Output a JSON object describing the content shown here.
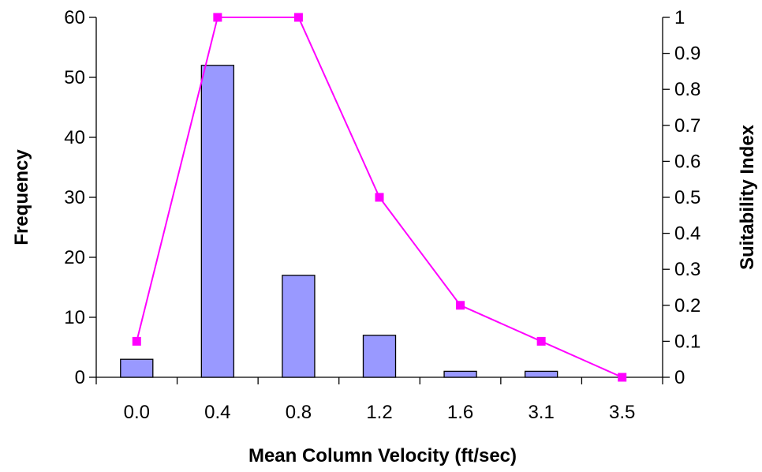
{
  "chart_data": {
    "type": "bar",
    "categories": [
      "0.0",
      "0.4",
      "0.8",
      "1.2",
      "1.6",
      "3.1",
      "3.5"
    ],
    "xlabel": "Mean Column Velocity (ft/sec)",
    "ylabel": "Frequency",
    "y2label": "Suitability Index",
    "ylim": [
      0,
      60
    ],
    "y2lim": [
      0,
      1
    ],
    "yticks": [
      "0",
      "10",
      "20",
      "30",
      "40",
      "50",
      "60"
    ],
    "y2ticks": [
      "0",
      "0.1",
      "0.2",
      "0.3",
      "0.4",
      "0.5",
      "0.6",
      "0.7",
      "0.8",
      "0.9",
      "1"
    ],
    "grid": false,
    "series": [
      {
        "type": "bar",
        "axis": "left",
        "values": [
          3,
          52,
          17,
          7,
          1,
          1,
          0
        ],
        "color": "#9999ff"
      },
      {
        "type": "line",
        "axis": "right",
        "values": [
          0.1,
          1,
          1,
          0.5,
          0.2,
          0.1,
          0
        ],
        "color": "#ff00ff"
      }
    ]
  }
}
